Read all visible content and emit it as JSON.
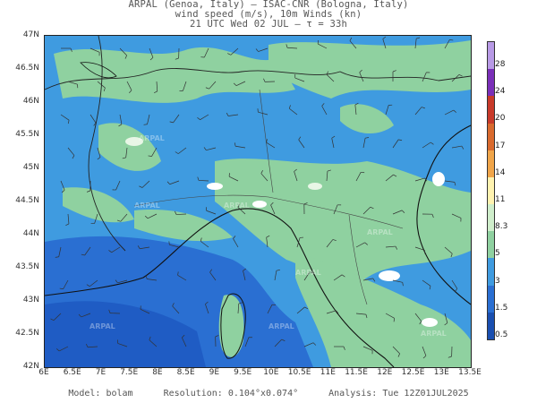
{
  "header": {
    "line1": "ARPAL (Genoa, Italy)  –  ISAC-CNR (Bologna, Italy)",
    "line2": "wind speed (m/s), 10m Winds (kn)",
    "line3": "21 UTC Wed 02 JUL  –  τ = 33h"
  },
  "axes": {
    "lat_labels": [
      "47N",
      "46.5N",
      "46N",
      "45.5N",
      "45N",
      "44.5N",
      "44N",
      "43.5N",
      "43N",
      "42.5N",
      "42N"
    ],
    "lon_labels": [
      "6E",
      "6.5E",
      "7E",
      "7.5E",
      "8E",
      "8.5E",
      "9E",
      "9.5E",
      "10E",
      "10.5E",
      "11E",
      "11.5E",
      "12E",
      "12.5E",
      "13E",
      "13.5E"
    ]
  },
  "colorbar": {
    "labels": [
      "28",
      "24",
      "20",
      "17",
      "14",
      "11",
      "8.3",
      "5",
      "3",
      "1.5",
      "0.5"
    ],
    "colors": [
      "#b89ae6",
      "#7a2fb8",
      "#c83a2a",
      "#d96a2e",
      "#f0a54a",
      "#fff3b0",
      "#cfeecb",
      "#8fd1a0",
      "#3f9be0",
      "#2a6fd2",
      "#1a4fb0"
    ]
  },
  "watermark": "ARPAL",
  "footer": {
    "model": "Model:  bolam",
    "resolution": "Resolution:  0.104°x0.074°",
    "analysis": "Analysis:  Tue  12Z01JUL2025"
  }
}
